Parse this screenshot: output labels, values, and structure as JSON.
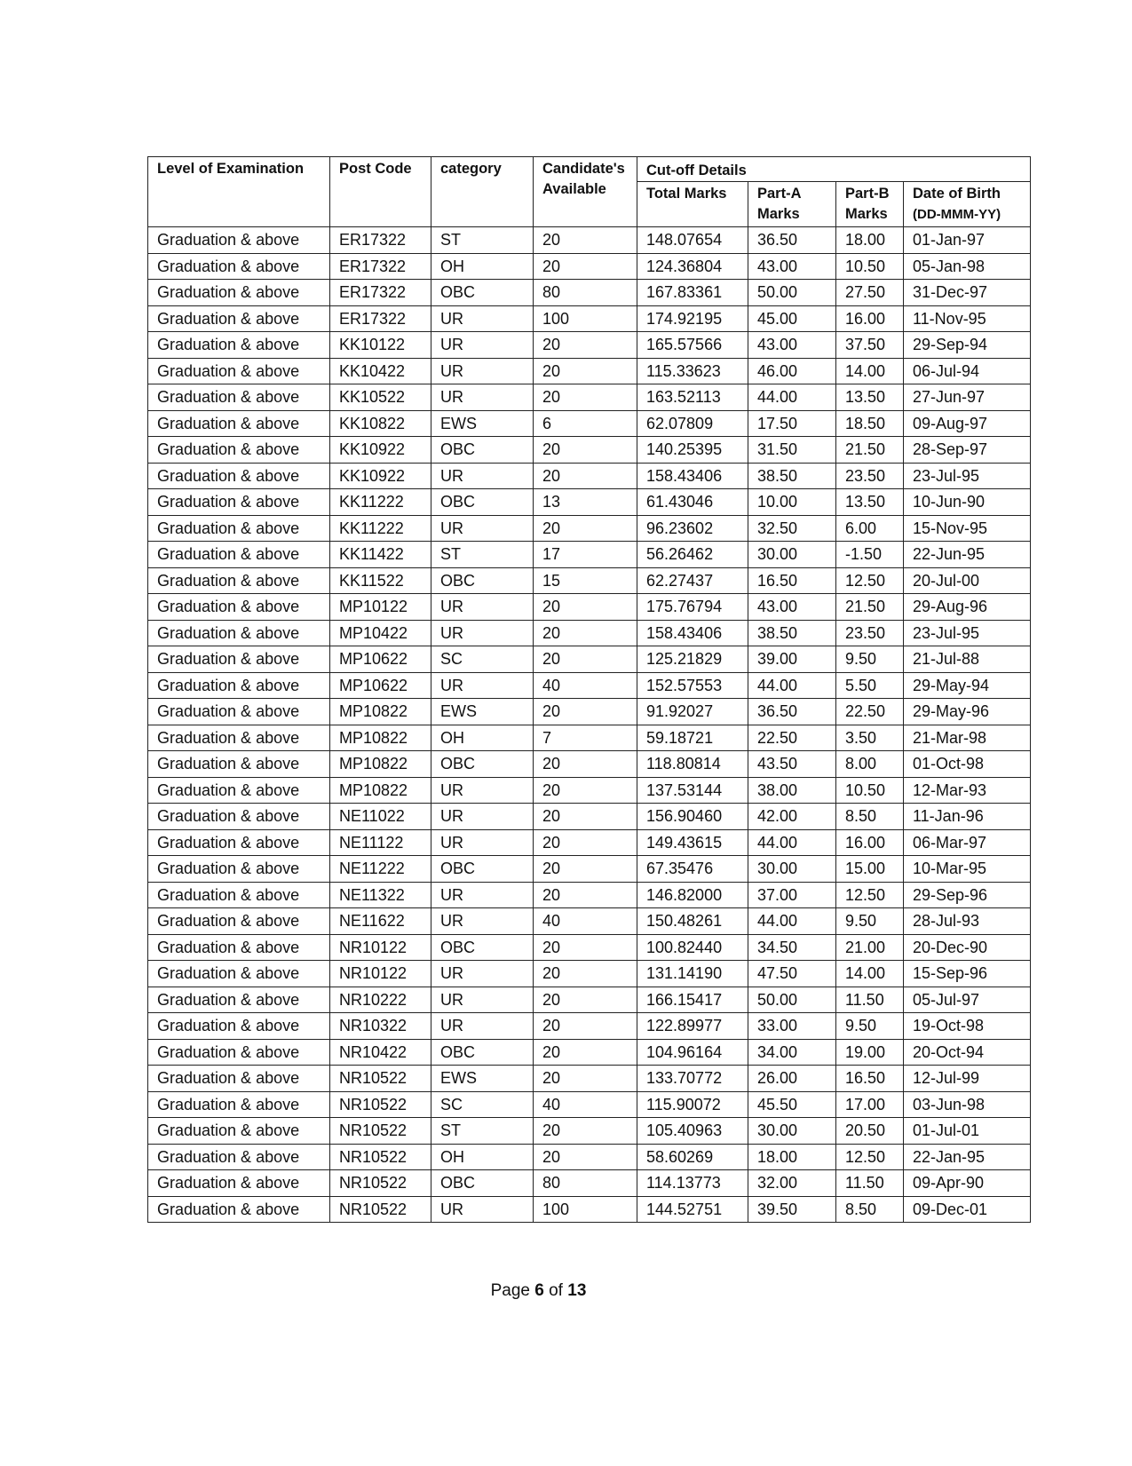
{
  "table": {
    "headers": {
      "level": "Level of Examination",
      "post_code": "Post Code",
      "category": "category",
      "candidates": "Candidate's Available",
      "cutoff": "Cut-off Details",
      "total": "Total Marks",
      "part_a": "Part-A Marks",
      "part_b": "Part-B Marks",
      "dob": "Date of Birth",
      "dob_format": "(DD-MMM-YY)"
    },
    "rows": [
      [
        "Graduation & above",
        "ER17322",
        "ST",
        "20",
        "148.07654",
        "36.50",
        "18.00",
        "01-Jan-97"
      ],
      [
        "Graduation & above",
        "ER17322",
        "OH",
        "20",
        "124.36804",
        "43.00",
        "10.50",
        "05-Jan-98"
      ],
      [
        "Graduation & above",
        "ER17322",
        "OBC",
        "80",
        "167.83361",
        "50.00",
        "27.50",
        "31-Dec-97"
      ],
      [
        "Graduation & above",
        "ER17322",
        "UR",
        "100",
        "174.92195",
        "45.00",
        "16.00",
        "11-Nov-95"
      ],
      [
        "Graduation & above",
        "KK10122",
        "UR",
        "20",
        "165.57566",
        "43.00",
        "37.50",
        "29-Sep-94"
      ],
      [
        "Graduation & above",
        "KK10422",
        "UR",
        "20",
        "115.33623",
        "46.00",
        "14.00",
        "06-Jul-94"
      ],
      [
        "Graduation & above",
        "KK10522",
        "UR",
        "20",
        "163.52113",
        "44.00",
        "13.50",
        "27-Jun-97"
      ],
      [
        "Graduation & above",
        "KK10822",
        "EWS",
        "6",
        "62.07809",
        "17.50",
        "18.50",
        "09-Aug-97"
      ],
      [
        "Graduation & above",
        "KK10922",
        "OBC",
        "20",
        "140.25395",
        "31.50",
        "21.50",
        "28-Sep-97"
      ],
      [
        "Graduation & above",
        "KK10922",
        "UR",
        "20",
        "158.43406",
        "38.50",
        "23.50",
        "23-Jul-95"
      ],
      [
        "Graduation & above",
        "KK11222",
        "OBC",
        "13",
        "61.43046",
        "10.00",
        "13.50",
        "10-Jun-90"
      ],
      [
        "Graduation & above",
        "KK11222",
        "UR",
        "20",
        "96.23602",
        "32.50",
        "6.00",
        "15-Nov-95"
      ],
      [
        "Graduation & above",
        "KK11422",
        "ST",
        "17",
        "56.26462",
        "30.00",
        "-1.50",
        "22-Jun-95"
      ],
      [
        "Graduation & above",
        "KK11522",
        "OBC",
        "15",
        "62.27437",
        "16.50",
        "12.50",
        "20-Jul-00"
      ],
      [
        "Graduation & above",
        "MP10122",
        "UR",
        "20",
        "175.76794",
        "43.00",
        "21.50",
        "29-Aug-96"
      ],
      [
        "Graduation & above",
        "MP10422",
        "UR",
        "20",
        "158.43406",
        "38.50",
        "23.50",
        "23-Jul-95"
      ],
      [
        "Graduation & above",
        "MP10622",
        "SC",
        "20",
        "125.21829",
        "39.00",
        "9.50",
        "21-Jul-88"
      ],
      [
        "Graduation & above",
        "MP10622",
        "UR",
        "40",
        "152.57553",
        "44.00",
        "5.50",
        "29-May-94"
      ],
      [
        "Graduation & above",
        "MP10822",
        "EWS",
        "20",
        "91.92027",
        "36.50",
        "22.50",
        "29-May-96"
      ],
      [
        "Graduation & above",
        "MP10822",
        "OH",
        "7",
        "59.18721",
        "22.50",
        "3.50",
        "21-Mar-98"
      ],
      [
        "Graduation & above",
        "MP10822",
        "OBC",
        "20",
        "118.80814",
        "43.50",
        "8.00",
        "01-Oct-98"
      ],
      [
        "Graduation & above",
        "MP10822",
        "UR",
        "20",
        "137.53144",
        "38.00",
        "10.50",
        "12-Mar-93"
      ],
      [
        "Graduation & above",
        "NE11022",
        "UR",
        "20",
        "156.90460",
        "42.00",
        "8.50",
        "11-Jan-96"
      ],
      [
        "Graduation & above",
        "NE11122",
        "UR",
        "20",
        "149.43615",
        "44.00",
        "16.00",
        "06-Mar-97"
      ],
      [
        "Graduation & above",
        "NE11222",
        "OBC",
        "20",
        "67.35476",
        "30.00",
        "15.00",
        "10-Mar-95"
      ],
      [
        "Graduation & above",
        "NE11322",
        "UR",
        "20",
        "146.82000",
        "37.00",
        "12.50",
        "29-Sep-96"
      ],
      [
        "Graduation & above",
        "NE11622",
        "UR",
        "40",
        "150.48261",
        "44.00",
        "9.50",
        "28-Jul-93"
      ],
      [
        "Graduation & above",
        "NR10122",
        "OBC",
        "20",
        "100.82440",
        "34.50",
        "21.00",
        "20-Dec-90"
      ],
      [
        "Graduation & above",
        "NR10122",
        "UR",
        "20",
        "131.14190",
        "47.50",
        "14.00",
        "15-Sep-96"
      ],
      [
        "Graduation & above",
        "NR10222",
        "UR",
        "20",
        "166.15417",
        "50.00",
        "11.50",
        "05-Jul-97"
      ],
      [
        "Graduation & above",
        "NR10322",
        "UR",
        "20",
        "122.89977",
        "33.00",
        "9.50",
        "19-Oct-98"
      ],
      [
        "Graduation & above",
        "NR10422",
        "OBC",
        "20",
        "104.96164",
        "34.00",
        "19.00",
        "20-Oct-94"
      ],
      [
        "Graduation & above",
        "NR10522",
        "EWS",
        "20",
        "133.70772",
        "26.00",
        "16.50",
        "12-Jul-99"
      ],
      [
        "Graduation & above",
        "NR10522",
        "SC",
        "40",
        "115.90072",
        "45.50",
        "17.00",
        "03-Jun-98"
      ],
      [
        "Graduation & above",
        "NR10522",
        "ST",
        "20",
        "105.40963",
        "30.00",
        "20.50",
        "01-Jul-01"
      ],
      [
        "Graduation & above",
        "NR10522",
        "OH",
        "20",
        "58.60269",
        "18.00",
        "12.50",
        "22-Jan-95"
      ],
      [
        "Graduation & above",
        "NR10522",
        "OBC",
        "80",
        "114.13773",
        "32.00",
        "11.50",
        "09-Apr-90"
      ],
      [
        "Graduation & above",
        "NR10522",
        "UR",
        "100",
        "144.52751",
        "39.50",
        "8.50",
        "09-Dec-01"
      ]
    ]
  },
  "footer": {
    "page_word": "Page",
    "current": "6",
    "of_word": "of",
    "total": "13"
  }
}
